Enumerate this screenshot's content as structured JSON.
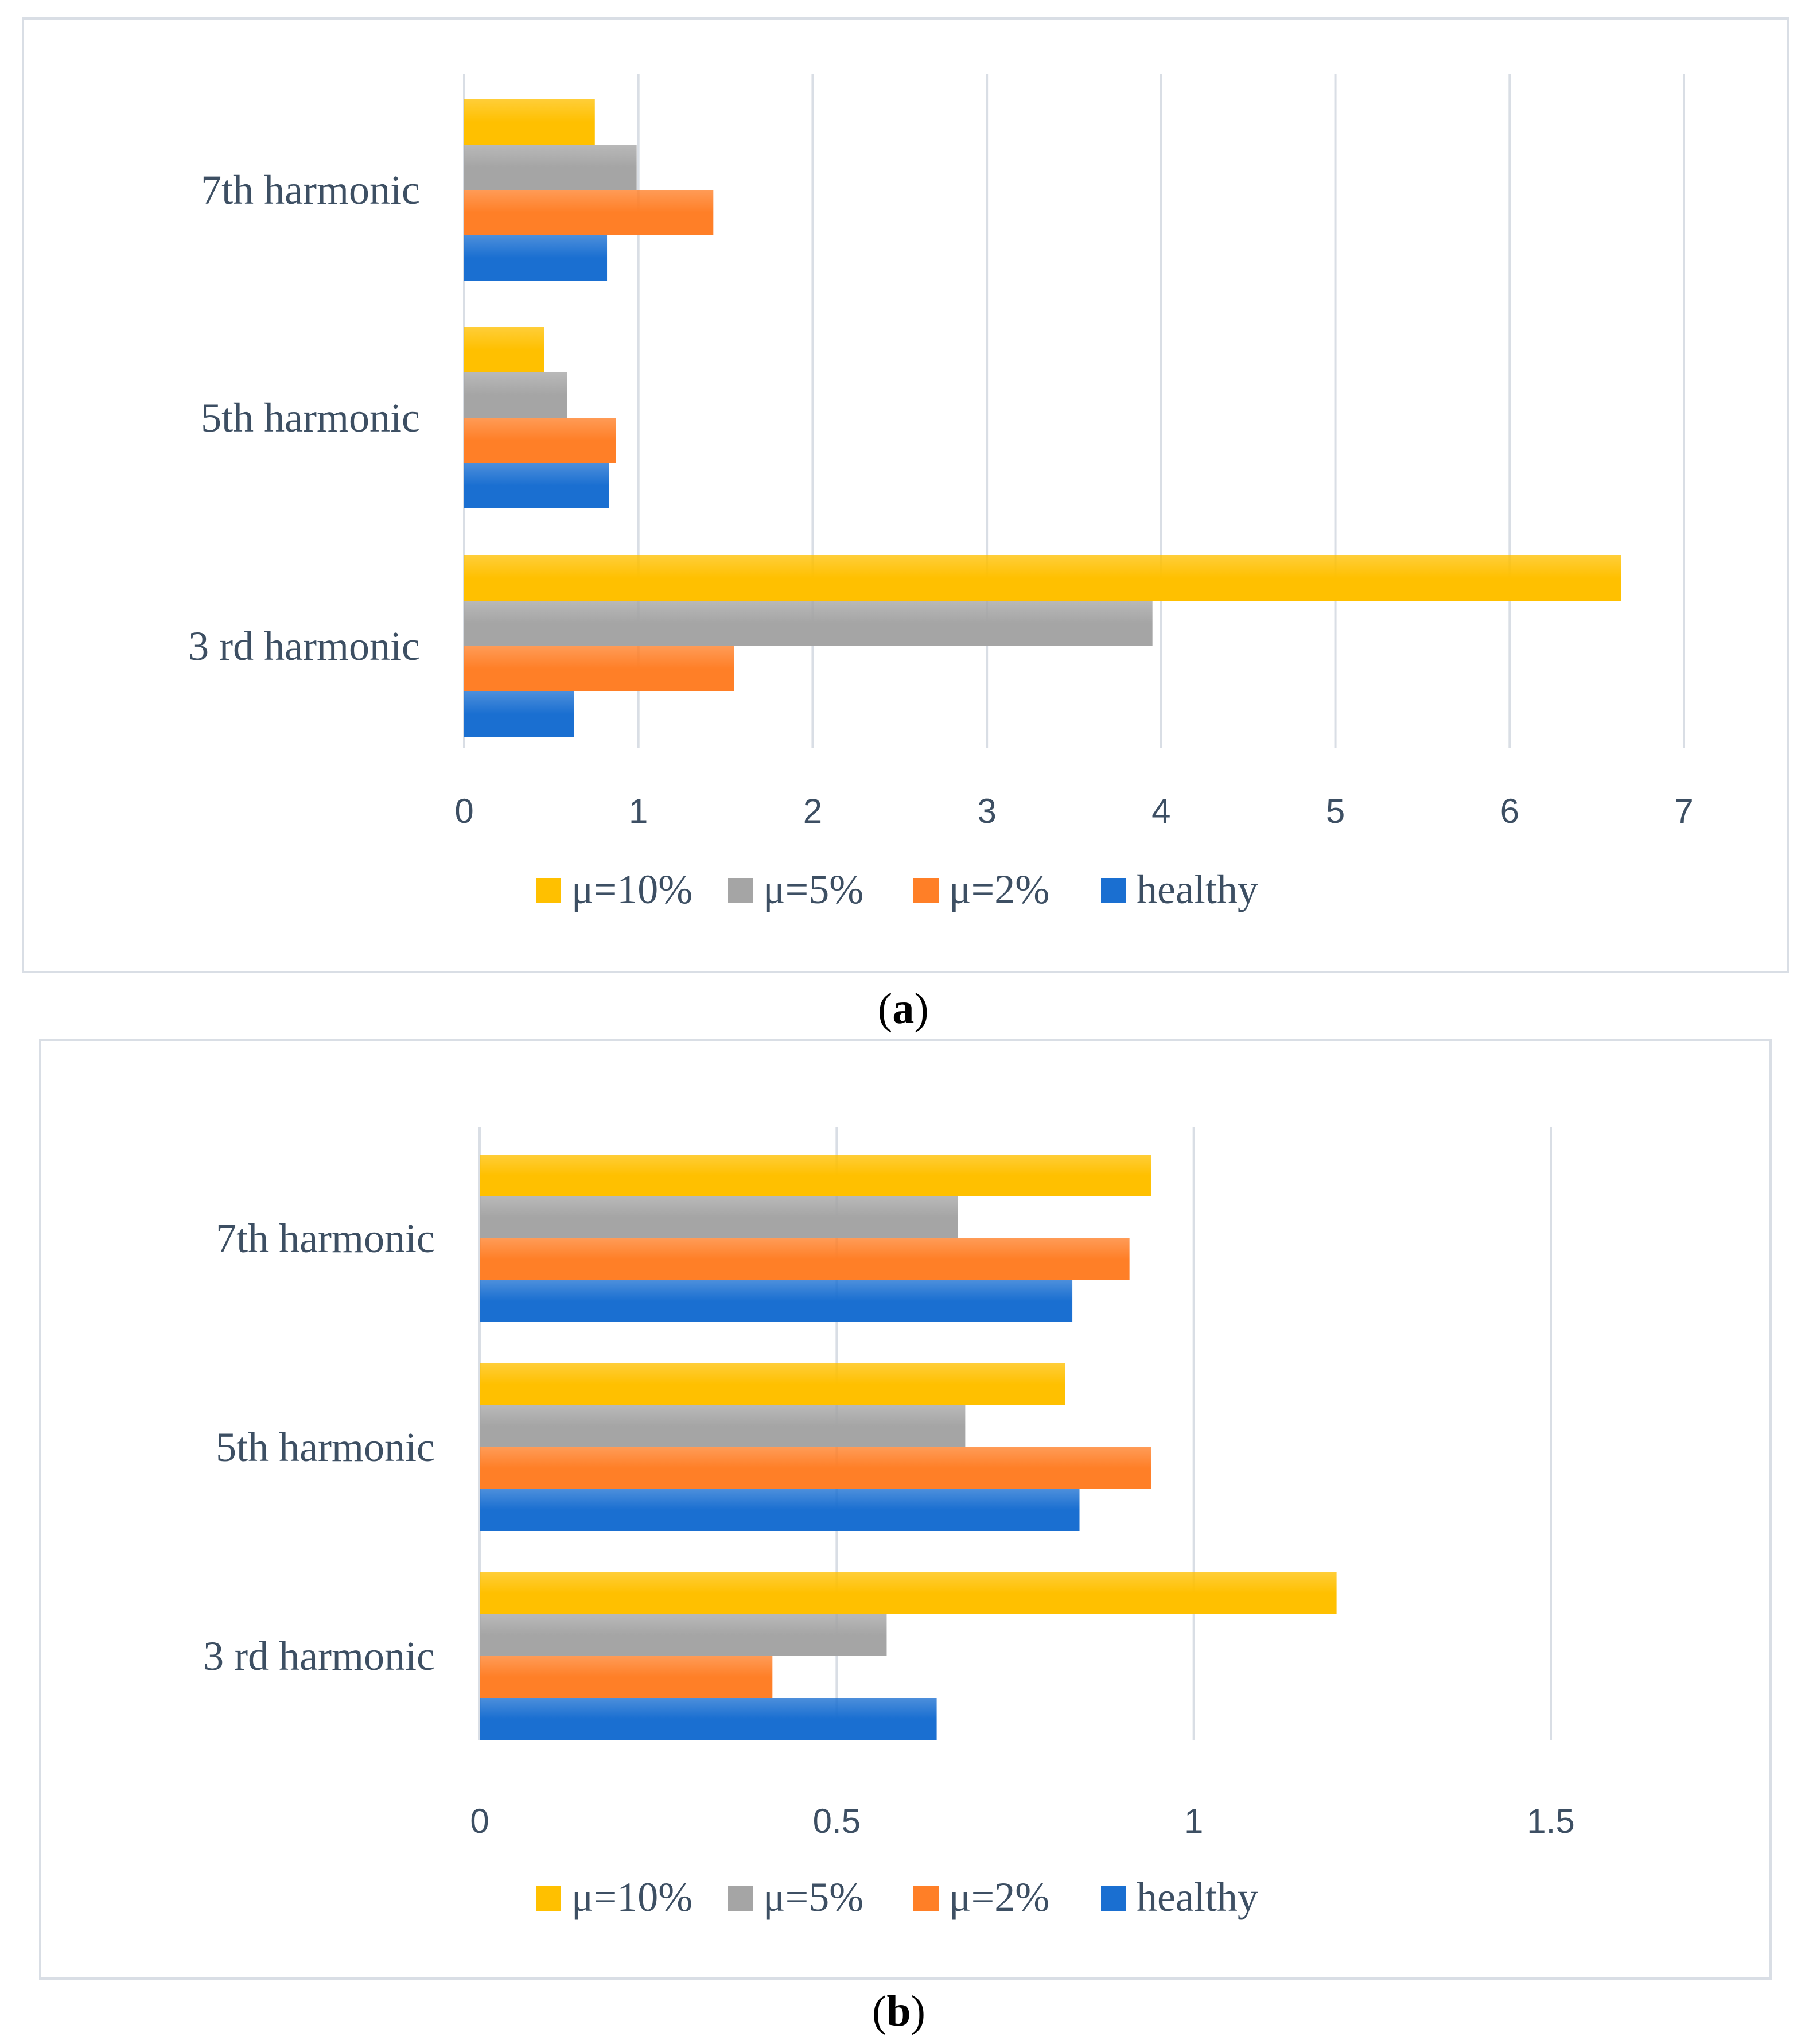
{
  "colors": {
    "mu10": "#ffc000",
    "mu5": "#a5a5a5",
    "mu2": "#ff7f27",
    "healthy": "#1a6fd1",
    "grid": "#d9dee5",
    "text": "#3d4f63"
  },
  "captions": {
    "a_open": "(",
    "a_letter": "a",
    "a_close": ")",
    "b_open": "(",
    "b_letter": "b",
    "b_close": ")"
  },
  "chart_data": [
    {
      "type": "bar",
      "orientation": "horizontal",
      "panel": "a",
      "categories": [
        "7th harmonic",
        "5th harmonic",
        "3 rd harmonic"
      ],
      "series": [
        {
          "name": "μ=10%",
          "key": "mu10",
          "values": [
            0.75,
            0.46,
            6.64
          ]
        },
        {
          "name": "μ=5%",
          "key": "mu5",
          "values": [
            0.99,
            0.59,
            3.95
          ]
        },
        {
          "name": "μ=2%",
          "key": "mu2",
          "values": [
            1.43,
            0.87,
            1.55
          ]
        },
        {
          "name": "healthy",
          "key": "healthy",
          "values": [
            0.82,
            0.83,
            0.63
          ]
        }
      ],
      "xlim": [
        0,
        7
      ],
      "xticks": [
        "0",
        "1",
        "2",
        "3",
        "4",
        "5",
        "6",
        "7"
      ],
      "grid": true,
      "legend_position": "bottom"
    },
    {
      "type": "bar",
      "orientation": "horizontal",
      "panel": "b",
      "categories": [
        "7th harmonic",
        "5th harmonic",
        "3 rd harmonic"
      ],
      "series": [
        {
          "name": "μ=10%",
          "key": "mu10",
          "values": [
            0.94,
            0.82,
            1.2
          ]
        },
        {
          "name": "μ=5%",
          "key": "mu5",
          "values": [
            0.67,
            0.68,
            0.57
          ]
        },
        {
          "name": "μ=2%",
          "key": "mu2",
          "values": [
            0.91,
            0.94,
            0.41
          ]
        },
        {
          "name": "healthy",
          "key": "healthy",
          "values": [
            0.83,
            0.84,
            0.64
          ]
        }
      ],
      "xlim": [
        0,
        1.5
      ],
      "xticks": [
        "0",
        "0.5",
        "1",
        "1.5"
      ],
      "grid": true,
      "legend_position": "bottom"
    }
  ]
}
